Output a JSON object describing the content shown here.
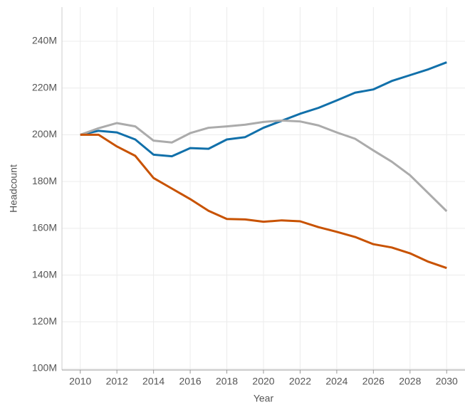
{
  "chart_data": {
    "type": "line",
    "x_label": "Year",
    "y_label": "Headcount",
    "x": [
      2010,
      2011,
      2012,
      2013,
      2014,
      2015,
      2016,
      2017,
      2018,
      2019,
      2020,
      2021,
      2022,
      2023,
      2024,
      2025,
      2026,
      2027,
      2028,
      2029,
      2030
    ],
    "series": [
      {
        "color": "#1170aa",
        "values": [
          200,
          201.7,
          201,
          198,
          191.5,
          190.8,
          194.3,
          194,
          198,
          199,
          203,
          206,
          209,
          211.5,
          214.7,
          218,
          219.4,
          223,
          225.5,
          228,
          231
        ]
      },
      {
        "color": "#ababab",
        "values": [
          200,
          202.8,
          205,
          203.6,
          197.5,
          196.7,
          200.7,
          203,
          203.6,
          204.3,
          205.5,
          206.1,
          205.7,
          204,
          201,
          198.3,
          193.3,
          188.5,
          182.7,
          175,
          167.3
        ]
      },
      {
        "color": "#c85200",
        "values": [
          200,
          200,
          195,
          191,
          181.5,
          177,
          172.5,
          167.5,
          164,
          163.8,
          162.8,
          163.4,
          163,
          160.5,
          158.5,
          156.3,
          153.2,
          151.8,
          149.3,
          145.7,
          143
        ]
      }
    ],
    "xlim": [
      2009,
      2031
    ],
    "xticks": [
      2010,
      2012,
      2014,
      2016,
      2018,
      2020,
      2022,
      2024,
      2026,
      2028,
      2030
    ],
    "ylim": [
      99.4,
      254.6
    ],
    "yticks": [
      {
        "value": 100,
        "label": "100M"
      },
      {
        "value": 120,
        "label": "120M"
      },
      {
        "value": 140,
        "label": "140M"
      },
      {
        "value": 160,
        "label": "160M"
      },
      {
        "value": 180,
        "label": "180M"
      },
      {
        "value": 200,
        "label": "200M"
      },
      {
        "value": 220,
        "label": "220M"
      },
      {
        "value": 240,
        "label": "240M"
      }
    ],
    "grid": true
  }
}
